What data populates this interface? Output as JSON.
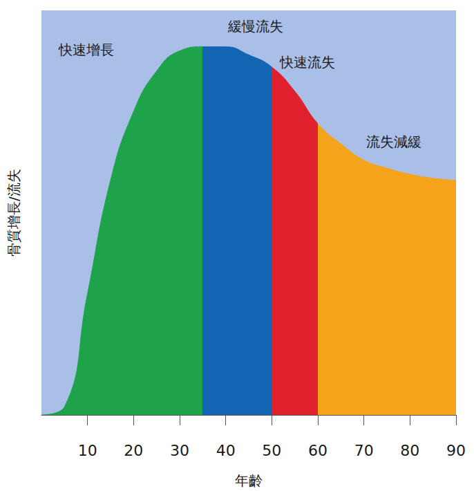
{
  "chart_data": {
    "type": "area",
    "x_label": "年齡",
    "y_label": "骨質增長/流失",
    "x": [
      0,
      5,
      10,
      15,
      20,
      25,
      30,
      35,
      40,
      45,
      50,
      55,
      60,
      65,
      70,
      75,
      80,
      85,
      90
    ],
    "values": [
      0,
      2,
      30,
      58,
      75,
      85,
      90,
      91,
      91,
      89,
      86,
      80,
      72,
      67,
      63,
      61,
      59.5,
      58.5,
      58
    ],
    "segments": [
      {
        "name": "快速增長",
        "from": 0,
        "to": 35,
        "color": "#1fa34a"
      },
      {
        "name": "緩慢流失",
        "from": 35,
        "to": 50,
        "color": "#1464b4"
      },
      {
        "name": "快速流失",
        "from": 50,
        "to": 60,
        "color": "#e0202c"
      },
      {
        "name": "流失減緩",
        "from": 60,
        "to": 90,
        "color": "#f5a31a"
      }
    ],
    "xlim": [
      0,
      90
    ],
    "xticks": [
      10,
      20,
      30,
      40,
      50,
      60,
      70,
      80,
      90
    ],
    "ylim": [
      0,
      100
    ],
    "tick_labels": "x",
    "grid": false
  }
}
